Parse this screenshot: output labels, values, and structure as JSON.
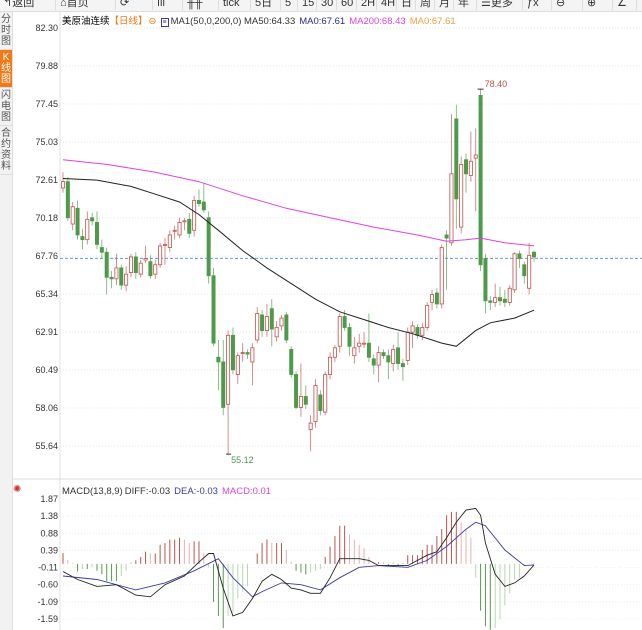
{
  "toolbar": {
    "items": [
      {
        "label": "↰返回",
        "icon": "back-icon"
      },
      {
        "label": "⌂首页",
        "icon": "home-icon"
      },
      {
        "label": "⟳",
        "icon": "refresh-icon"
      },
      {
        "label": "ıll",
        "icon": "indicator-icon"
      },
      {
        "label": "╫╫",
        "icon": "candle-icon"
      },
      {
        "label": "tick"
      },
      {
        "label": "5日"
      },
      {
        "label": "5"
      },
      {
        "label": "15"
      },
      {
        "label": "30"
      },
      {
        "label": "60"
      },
      {
        "label": "2H"
      },
      {
        "label": "4H"
      },
      {
        "label": "日"
      },
      {
        "label": "周"
      },
      {
        "label": "月"
      },
      {
        "label": "年"
      },
      {
        "label": "☰更多",
        "icon": "menu-icon"
      },
      {
        "label": "ƒx",
        "icon": "function-icon"
      },
      {
        "label": "⊖",
        "icon": "zoom-out-icon"
      },
      {
        "label": "⊕",
        "icon": "zoom-in-icon"
      },
      {
        "label": "∠",
        "icon": "pen-icon"
      },
      {
        "label": "∠",
        "icon": "draw-icon"
      }
    ]
  },
  "sidebar": {
    "tabs": [
      {
        "label": "分时图",
        "active": false
      },
      {
        "label": "K线图",
        "active": true
      },
      {
        "label": "闪电图",
        "active": false
      },
      {
        "label": "合约资料",
        "active": false
      }
    ]
  },
  "legend": {
    "symbol": "美原油连续",
    "period": "【日线】",
    "lock_icon": "lock-icon",
    "ma_icon": "settings-icon",
    "ma1": "MA1(50,0,200,0) MA50:64.33",
    "ma0a": "MA0:67.61",
    "ma200": "MA200:68.43",
    "ma0b": "MA0:67.61"
  },
  "colors": {
    "up": "#c0504d",
    "down": "#4e9a4a",
    "ma50": "#222222",
    "ma200": "#dd44dd",
    "ma0a": "#2a2a9a",
    "ma0b": "#f0a040",
    "period": "#f07a1a",
    "lastline": "#4a90c8",
    "diff": "#222222",
    "dea": "#3a3aa0",
    "macd": "#dd44dd"
  },
  "price_axis": {
    "ticks": [
      "82.30",
      "79.88",
      "77.45",
      "75.03",
      "72.61",
      "70.18",
      "67.76",
      "65.34",
      "62.91",
      "60.49",
      "58.06",
      "55.64"
    ],
    "max": 82.3,
    "min": 55.64
  },
  "last_price": 67.61,
  "high_label": "78.40",
  "low_label": "55.12",
  "candles": [
    [
      72.1,
      73.1,
      71.8,
      72.5
    ],
    [
      72.5,
      72.8,
      70.0,
      70.2
    ],
    [
      69.8,
      71.2,
      69.4,
      70.9
    ],
    [
      70.8,
      71.3,
      68.8,
      69.1
    ],
    [
      69.0,
      69.5,
      68.2,
      68.8
    ],
    [
      68.8,
      70.6,
      68.5,
      70.1
    ],
    [
      70.2,
      70.5,
      69.7,
      70.0
    ],
    [
      69.9,
      70.6,
      68.2,
      68.5
    ],
    [
      68.3,
      68.8,
      67.6,
      68.0
    ],
    [
      68.0,
      68.3,
      65.3,
      66.4
    ],
    [
      66.4,
      66.8,
      65.7,
      66.3
    ],
    [
      66.3,
      67.9,
      65.9,
      67.0
    ],
    [
      67.0,
      67.2,
      65.6,
      65.9
    ],
    [
      65.9,
      67.1,
      65.5,
      66.6
    ],
    [
      66.7,
      67.9,
      66.4,
      67.7
    ],
    [
      67.7,
      68.0,
      66.3,
      66.7
    ],
    [
      66.6,
      67.5,
      66.4,
      67.3
    ],
    [
      67.5,
      68.4,
      67.3,
      67.6
    ],
    [
      67.4,
      67.8,
      66.3,
      66.5
    ],
    [
      66.6,
      67.5,
      66.3,
      67.2
    ],
    [
      67.2,
      68.6,
      67.0,
      68.4
    ],
    [
      68.5,
      68.9,
      67.2,
      68.5
    ],
    [
      68.3,
      69.4,
      68.0,
      69.1
    ],
    [
      69.4,
      69.7,
      68.8,
      69.4
    ],
    [
      69.1,
      70.2,
      68.9,
      69.9
    ],
    [
      70.0,
      70.2,
      69.4,
      70.0
    ],
    [
      70.1,
      70.5,
      68.9,
      69.2
    ],
    [
      69.4,
      71.6,
      69.0,
      71.3
    ],
    [
      71.3,
      72.0,
      70.9,
      71.1
    ],
    [
      71.2,
      72.4,
      70.5,
      70.7
    ],
    [
      70.2,
      70.6,
      66.0,
      66.5
    ],
    [
      66.5,
      67.0,
      62.0,
      62.2
    ],
    [
      61.3,
      62.4,
      59.2,
      61.0
    ],
    [
      61.0,
      62.4,
      57.6,
      58.1
    ],
    [
      58.3,
      63.0,
      55.12,
      62.7
    ],
    [
      62.7,
      63.2,
      60.2,
      60.5
    ],
    [
      60.2,
      61.6,
      59.6,
      61.4
    ],
    [
      61.6,
      62.2,
      61.0,
      61.6
    ],
    [
      61.6,
      61.8,
      61.2,
      61.5
    ],
    [
      61.0,
      62.2,
      59.5,
      61.9
    ],
    [
      62.4,
      64.5,
      62.2,
      64.1
    ],
    [
      64.0,
      64.3,
      62.6,
      63.0
    ],
    [
      63.0,
      64.7,
      62.6,
      63.9
    ],
    [
      64.4,
      65.0,
      62.0,
      63.1
    ],
    [
      62.6,
      63.6,
      62.3,
      63.2
    ],
    [
      63.3,
      64.0,
      63.0,
      63.8
    ],
    [
      64.0,
      64.2,
      62.2,
      62.4
    ],
    [
      61.8,
      62.0,
      60.0,
      60.2
    ],
    [
      60.2,
      60.4,
      58.0,
      58.1
    ],
    [
      58.1,
      60.9,
      57.5,
      58.8
    ],
    [
      58.8,
      59.5,
      58.0,
      58.3
    ],
    [
      56.7,
      57.6,
      55.3,
      57.1
    ],
    [
      57.2,
      59.9,
      56.8,
      59.5
    ],
    [
      58.9,
      59.2,
      57.6,
      57.9
    ],
    [
      57.8,
      60.4,
      57.6,
      60.2
    ],
    [
      60.2,
      61.6,
      59.9,
      61.3
    ],
    [
      61.3,
      62.1,
      61.0,
      61.9
    ],
    [
      62.0,
      64.1,
      61.6,
      63.9
    ],
    [
      63.9,
      64.3,
      63.0,
      63.2
    ],
    [
      63.2,
      63.5,
      61.4,
      62.0
    ],
    [
      61.4,
      62.6,
      60.9,
      61.9
    ],
    [
      62.0,
      62.8,
      61.6,
      62.2
    ],
    [
      62.2,
      62.9,
      61.9,
      62.2
    ],
    [
      62.2,
      64.1,
      61.0,
      61.3
    ],
    [
      61.2,
      61.5,
      60.2,
      60.8
    ],
    [
      60.8,
      62.0,
      59.7,
      61.6
    ],
    [
      61.6,
      61.8,
      61.2,
      61.4
    ],
    [
      61.4,
      61.8,
      59.9,
      61.0
    ],
    [
      60.9,
      62.1,
      60.4,
      61.8
    ],
    [
      61.9,
      62.9,
      60.5,
      60.9
    ],
    [
      60.9,
      61.2,
      59.8,
      60.7
    ],
    [
      61.1,
      63.2,
      60.8,
      62.9
    ],
    [
      62.9,
      63.6,
      61.9,
      63.3
    ],
    [
      63.2,
      63.4,
      62.5,
      62.7
    ],
    [
      62.7,
      63.5,
      62.4,
      63.2
    ],
    [
      63.2,
      64.8,
      63.0,
      64.6
    ],
    [
      64.8,
      65.6,
      64.3,
      65.3
    ],
    [
      65.4,
      65.7,
      64.4,
      64.7
    ],
    [
      64.7,
      68.5,
      64.4,
      68.3
    ],
    [
      69.1,
      69.4,
      65.6,
      68.9
    ],
    [
      68.6,
      76.8,
      68.4,
      73.0
    ],
    [
      76.5,
      77.4,
      69.5,
      71.4
    ],
    [
      69.6,
      74.1,
      69.2,
      73.6
    ],
    [
      73.9,
      74.3,
      71.8,
      73.0
    ],
    [
      72.9,
      75.7,
      72.5,
      73.8
    ],
    [
      74.0,
      75.9,
      70.6,
      74.2
    ],
    [
      78.0,
      78.4,
      66.8,
      67.2
    ],
    [
      67.6,
      67.9,
      64.1,
      64.9
    ],
    [
      64.9,
      65.2,
      64.3,
      64.8
    ],
    [
      64.8,
      66.0,
      64.5,
      65.1
    ],
    [
      65.1,
      65.8,
      64.6,
      64.9
    ],
    [
      65.0,
      65.6,
      64.5,
      64.8
    ],
    [
      64.8,
      65.9,
      64.6,
      65.7
    ],
    [
      65.6,
      68.0,
      65.4,
      67.9
    ],
    [
      67.9,
      68.1,
      67.0,
      67.6
    ],
    [
      67.2,
      67.4,
      66.0,
      66.5
    ],
    [
      65.7,
      68.6,
      65.3,
      67.8
    ],
    [
      68.0,
      68.1,
      67.4,
      67.7
    ]
  ],
  "ma50": [
    [
      1,
      72.7
    ],
    [
      8,
      72.6
    ],
    [
      15,
      72.2
    ],
    [
      20,
      71.7
    ],
    [
      25,
      71.2
    ],
    [
      29,
      70.4
    ],
    [
      33,
      69.4
    ],
    [
      38,
      68.1
    ],
    [
      43,
      67.0
    ],
    [
      48,
      66.0
    ],
    [
      53,
      65.0
    ],
    [
      58,
      64.2
    ],
    [
      63,
      63.7
    ],
    [
      68,
      63.2
    ],
    [
      73,
      62.8
    ],
    [
      79,
      62.2
    ],
    [
      82,
      62.0
    ],
    [
      86,
      63.0
    ],
    [
      89,
      63.5
    ],
    [
      94,
      63.8
    ],
    [
      98,
      64.3
    ]
  ],
  "ma200": [
    [
      1,
      73.9
    ],
    [
      10,
      73.6
    ],
    [
      20,
      73.1
    ],
    [
      29,
      72.5
    ],
    [
      38,
      71.6
    ],
    [
      47,
      70.8
    ],
    [
      56,
      70.2
    ],
    [
      65,
      69.6
    ],
    [
      74,
      69.1
    ],
    [
      80,
      68.7
    ],
    [
      84,
      68.8
    ],
    [
      87,
      68.9
    ],
    [
      92,
      68.6
    ],
    [
      98,
      68.4
    ]
  ],
  "macd": {
    "title": "MACD(13,8,9)",
    "diff_label": "DIFF:-0.03",
    "dea_label": "DEA:-0.03",
    "macd_label": "MACD:0.01",
    "icon": "macd-settings-icon",
    "ticks": [
      "1.87",
      "1.38",
      "0.88",
      "0.39",
      "-0.11",
      "-0.60",
      "-1.09",
      "-1.59"
    ],
    "max": 1.87,
    "min": -1.59,
    "hist": [
      0.31,
      0.11,
      0.02,
      -0.22,
      -0.15,
      -0.15,
      -0.1,
      -0.2,
      -0.3,
      -0.5,
      -0.5,
      -0.5,
      -0.35,
      -0.2,
      0.05,
      0.1,
      0.2,
      0.35,
      0.3,
      0.3,
      0.55,
      0.6,
      0.7,
      0.7,
      0.75,
      0.7,
      0.6,
      0.65,
      0.65,
      0.3,
      -0.1,
      -1.1,
      -1.5,
      -1.85,
      -1.5,
      -1.4,
      -1.0,
      -0.8,
      -0.65,
      0.0,
      0.3,
      0.6,
      0.7,
      0.6,
      0.6,
      0.6,
      0.4,
      0.06,
      -0.2,
      -0.25,
      -0.3,
      -0.25,
      -0.2,
      -0.15,
      0.2,
      0.5,
      0.8,
      1.1,
      1.1,
      0.85,
      0.7,
      0.55,
      0.45,
      0.2,
      0.05,
      0.05,
      0.04,
      -0.05,
      0.04,
      -0.06,
      0.03,
      0.25,
      0.25,
      0.25,
      0.4,
      0.55,
      0.55,
      0.8,
      1.0,
      1.4,
      1.5,
      1.5,
      1.2,
      1.0,
      0.75,
      -0.4,
      -1.35,
      -1.8,
      -1.9,
      -1.85,
      -1.6,
      -1.2,
      -0.85,
      -0.45,
      -0.4,
      -0.05,
      0.0,
      0.01
    ],
    "diff": [
      [
        1,
        -0.22
      ],
      [
        4,
        -0.45
      ],
      [
        8,
        -0.65
      ],
      [
        12,
        -0.6
      ],
      [
        16,
        -0.9
      ],
      [
        19,
        -0.95
      ],
      [
        22,
        -0.6
      ],
      [
        26,
        -0.35
      ],
      [
        29,
        0.05
      ],
      [
        31,
        0.3
      ],
      [
        32,
        0.3
      ],
      [
        34,
        -0.7
      ],
      [
        36,
        -1.5
      ],
      [
        38,
        -1.4
      ],
      [
        40,
        -1.0
      ],
      [
        42,
        -0.5
      ],
      [
        44,
        -0.3
      ],
      [
        46,
        -0.45
      ],
      [
        48,
        -0.7
      ],
      [
        50,
        -0.75
      ],
      [
        52,
        -0.85
      ],
      [
        54,
        -0.85
      ],
      [
        56,
        -0.4
      ],
      [
        58,
        0.15
      ],
      [
        62,
        0.15
      ],
      [
        64,
        0.1
      ],
      [
        66,
        -0.05
      ],
      [
        72,
        -0.05
      ],
      [
        74,
        0.1
      ],
      [
        76,
        0.25
      ],
      [
        78,
        0.35
      ],
      [
        80,
        0.75
      ],
      [
        82,
        1.2
      ],
      [
        84,
        1.55
      ],
      [
        86,
        1.6
      ],
      [
        87,
        1.4
      ],
      [
        88,
        0.6
      ],
      [
        90,
        -0.3
      ],
      [
        92,
        -0.65
      ],
      [
        94,
        -0.55
      ],
      [
        96,
        -0.35
      ],
      [
        98,
        -0.03
      ]
    ],
    "dea": [
      [
        1,
        -0.35
      ],
      [
        8,
        -0.45
      ],
      [
        16,
        -0.75
      ],
      [
        22,
        -0.55
      ],
      [
        28,
        -0.2
      ],
      [
        33,
        0.15
      ],
      [
        36,
        -0.4
      ],
      [
        40,
        -0.95
      ],
      [
        42,
        -0.8
      ],
      [
        46,
        -0.55
      ],
      [
        50,
        -0.6
      ],
      [
        54,
        -0.75
      ],
      [
        58,
        -0.4
      ],
      [
        62,
        -0.1
      ],
      [
        66,
        -0.05
      ],
      [
        72,
        -0.1
      ],
      [
        76,
        0.1
      ],
      [
        80,
        0.5
      ],
      [
        84,
        1.0
      ],
      [
        86,
        1.2
      ],
      [
        88,
        1.1
      ],
      [
        92,
        0.4
      ],
      [
        96,
        -0.05
      ],
      [
        98,
        -0.03
      ]
    ]
  }
}
